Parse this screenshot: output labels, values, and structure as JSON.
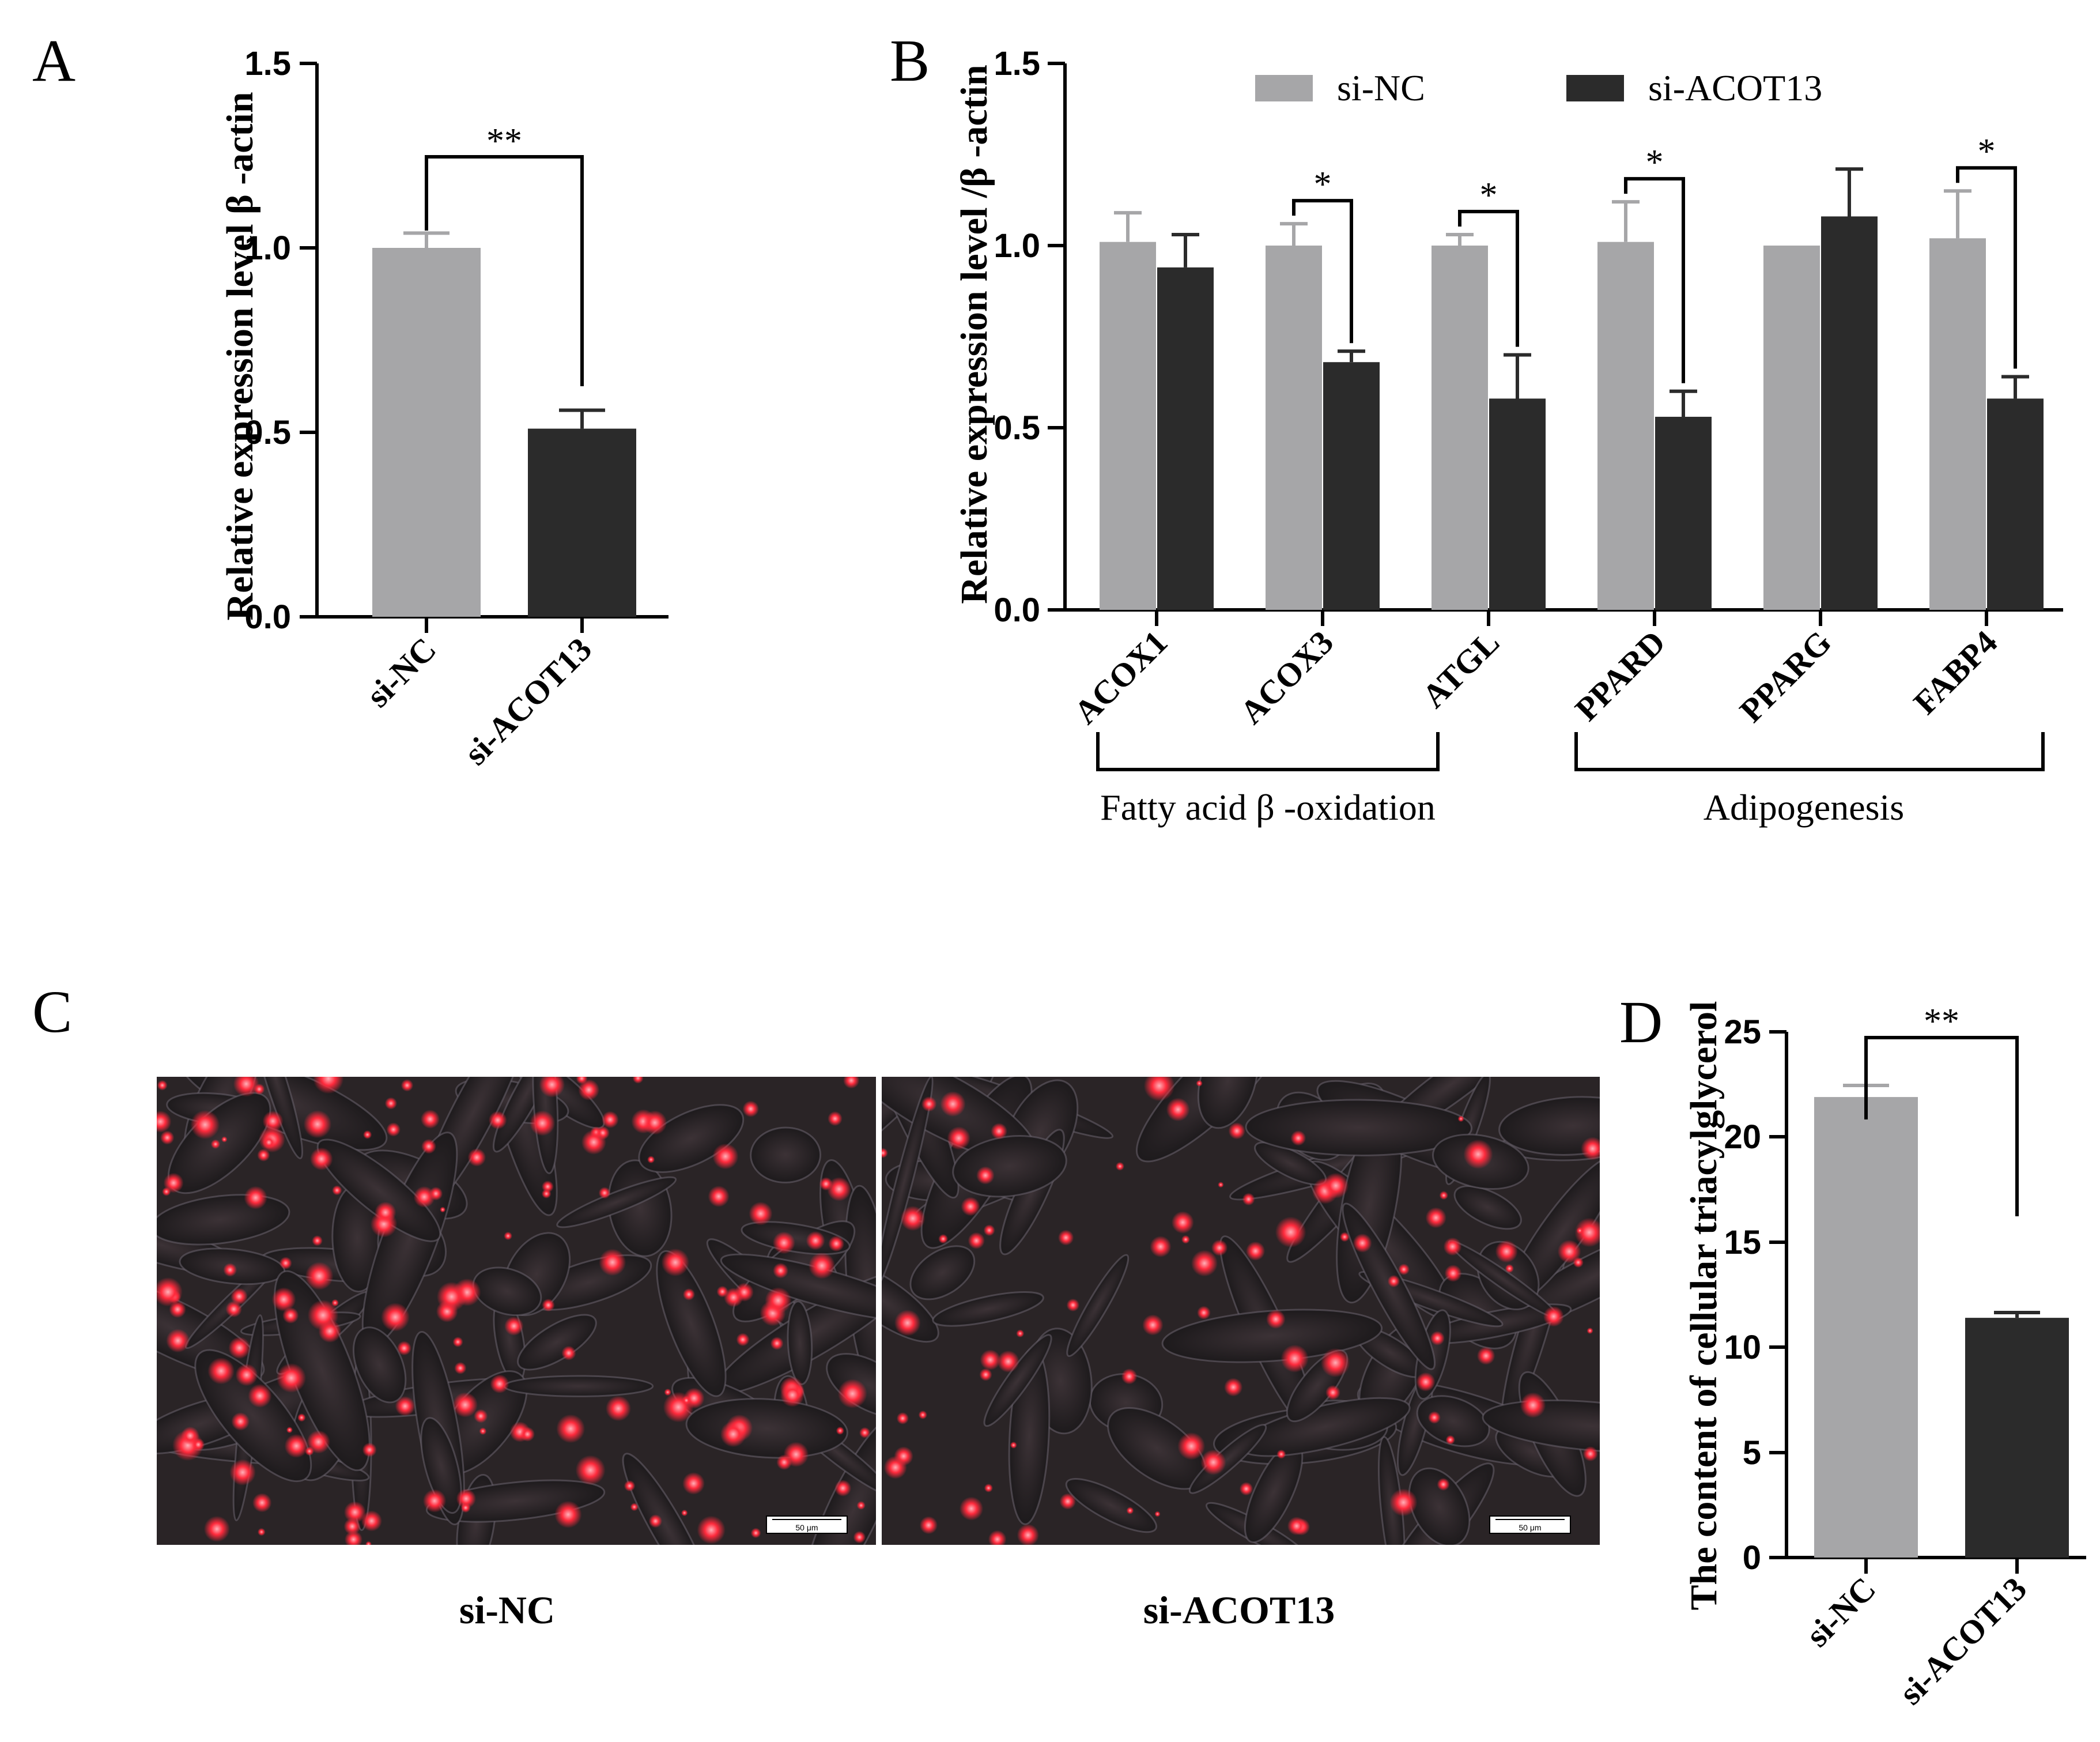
{
  "panels": {
    "a": "A",
    "b": "B",
    "c": "C",
    "d": "D"
  },
  "colors": {
    "si_nc": "#a6a6a8",
    "si_acot13": "#2b2b2b",
    "axis": "#000000"
  },
  "chart_data": [
    {
      "id": "A",
      "type": "bar",
      "ylabel": "Relative expression level β -actin",
      "ylim": [
        0,
        1.5
      ],
      "yticks": [
        "0.0",
        "0.5",
        "1.0",
        "1.5"
      ],
      "categories": [
        "si-NC",
        "si-ACOT13"
      ],
      "values": [
        1.0,
        0.51
      ],
      "errors": [
        0.04,
        0.05
      ],
      "significance": "**"
    },
    {
      "id": "B",
      "type": "bar",
      "ylabel": "Relative expression level /β -actin",
      "ylim": [
        0,
        1.5
      ],
      "yticks": [
        "0.0",
        "0.5",
        "1.0",
        "1.5"
      ],
      "categories": [
        "ACOX1",
        "ACOX3",
        "ATGL",
        "PPARD",
        "PPARG",
        "FABP4"
      ],
      "series": [
        {
          "name": "si-NC",
          "values": [
            1.01,
            1.0,
            1.0,
            1.01,
            1.0,
            1.02
          ],
          "errors": [
            0.08,
            0.06,
            0.03,
            0.11,
            0.0,
            0.13
          ]
        },
        {
          "name": "si-ACOT13",
          "values": [
            0.94,
            0.68,
            0.58,
            0.53,
            1.08,
            0.58
          ],
          "errors": [
            0.09,
            0.03,
            0.12,
            0.07,
            0.13,
            0.06
          ]
        }
      ],
      "significance": [
        "",
        "*",
        "*",
        "*",
        "",
        "*"
      ],
      "groups": [
        "Fatty acid β -oxidation",
        "Adipogenesis"
      ]
    },
    {
      "id": "D",
      "type": "bar",
      "ylabel": "The content of cellular triacylglycerol",
      "ylim": [
        0,
        25
      ],
      "yticks": [
        "0",
        "5",
        "10",
        "15",
        "20",
        "25"
      ],
      "categories": [
        "si-NC",
        "si-ACOT13"
      ],
      "values": [
        21.9,
        11.4
      ],
      "errors": [
        0.55,
        0.25
      ],
      "significance": "**"
    }
  ],
  "micrographs": {
    "left": {
      "caption": "si-NC",
      "scale_bar": "50 μm"
    },
    "right": {
      "caption": "si-ACOT13",
      "scale_bar": "50 μm"
    }
  }
}
